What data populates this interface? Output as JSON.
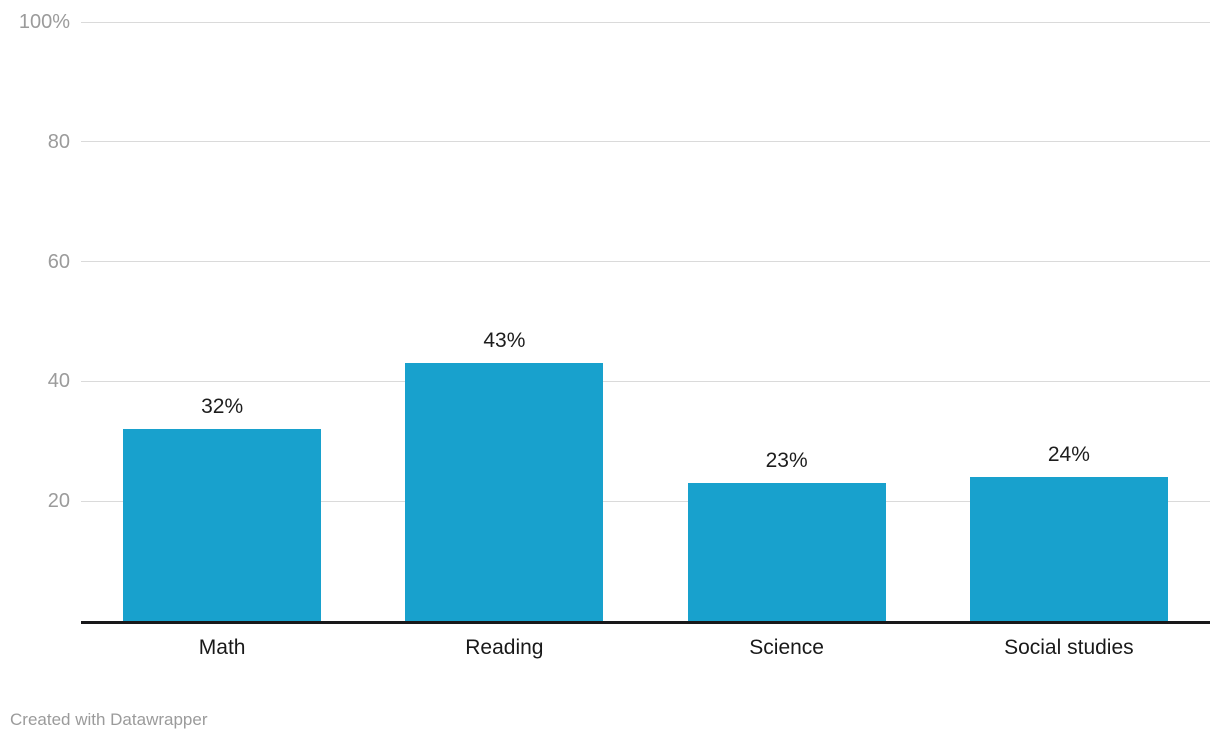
{
  "chart_data": {
    "type": "bar",
    "title": "",
    "xlabel": "",
    "ylabel": "",
    "categories": [
      "Math",
      "Reading",
      "Science",
      "Social studies"
    ],
    "values": [
      32,
      43,
      23,
      24
    ],
    "value_labels": [
      "32%",
      "43%",
      "23%",
      "24%"
    ],
    "ylim": [
      0,
      100
    ],
    "yticks": [
      {
        "value": 100,
        "label": "100%"
      },
      {
        "value": 80,
        "label": "80"
      },
      {
        "value": 60,
        "label": "60"
      },
      {
        "value": 40,
        "label": "40"
      },
      {
        "value": 20,
        "label": "20"
      }
    ],
    "grid": true,
    "legend": "none"
  },
  "colors": {
    "bar": "#18a1cd",
    "gridline": "#dadada",
    "axis_tick_label": "#9b9b9b",
    "value_label": "#1d1d1d",
    "category_label": "#191919",
    "baseline": "#18181a",
    "footer_text": "#9b9b9b",
    "background": "#ffffff"
  },
  "footer": {
    "credit": "Created with Datawrapper"
  }
}
